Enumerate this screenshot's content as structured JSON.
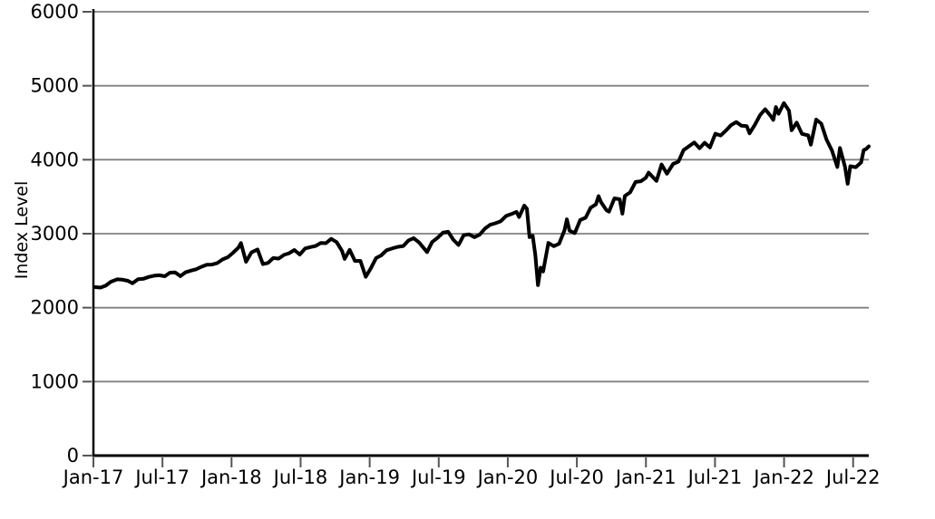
{
  "chart_data": {
    "type": "line",
    "title": "",
    "xlabel": "",
    "ylabel": "Index Level",
    "ylim": [
      0,
      6000
    ],
    "y_ticks": [
      0,
      1000,
      2000,
      3000,
      4000,
      5000,
      6000
    ],
    "x_tick_labels": [
      "Jan-17",
      "Jul-17",
      "Jan-18",
      "Jul-18",
      "Jan-19",
      "Jul-19",
      "Jan-20",
      "Jul-20",
      "Jan-21",
      "Jul-21",
      "Jan-22",
      "Jul-22"
    ],
    "x_tick_interval_months": 6,
    "x_domain": [
      "2017-01-01",
      "2022-08-12"
    ],
    "grid": "horizontal",
    "legend": "none",
    "colors": {
      "line": "#000000",
      "grid": "#808080",
      "axis": "#000000",
      "tick": "#555555",
      "text": "#000000",
      "background": "#ffffff"
    },
    "series": [
      {
        "name": "Index Level",
        "dates": [
          "2017-01-06",
          "2017-01-20",
          "2017-02-03",
          "2017-02-17",
          "2017-03-03",
          "2017-03-17",
          "2017-03-31",
          "2017-04-13",
          "2017-04-28",
          "2017-05-12",
          "2017-05-26",
          "2017-06-09",
          "2017-06-23",
          "2017-07-07",
          "2017-07-21",
          "2017-08-04",
          "2017-08-18",
          "2017-09-01",
          "2017-09-15",
          "2017-09-29",
          "2017-10-13",
          "2017-10-27",
          "2017-11-10",
          "2017-11-24",
          "2017-12-08",
          "2017-12-22",
          "2018-01-05",
          "2018-01-19",
          "2018-01-26",
          "2018-02-09",
          "2018-02-23",
          "2018-03-09",
          "2018-03-23",
          "2018-04-06",
          "2018-04-20",
          "2018-05-04",
          "2018-05-18",
          "2018-06-01",
          "2018-06-15",
          "2018-06-29",
          "2018-07-13",
          "2018-07-27",
          "2018-08-10",
          "2018-08-24",
          "2018-09-07",
          "2018-09-21",
          "2018-10-05",
          "2018-10-19",
          "2018-10-26",
          "2018-11-09",
          "2018-11-23",
          "2018-12-07",
          "2018-12-21",
          "2019-01-04",
          "2019-01-18",
          "2019-02-01",
          "2019-02-15",
          "2019-03-01",
          "2019-03-15",
          "2019-03-29",
          "2019-04-12",
          "2019-04-26",
          "2019-05-10",
          "2019-05-31",
          "2019-06-14",
          "2019-06-28",
          "2019-07-12",
          "2019-07-26",
          "2019-08-09",
          "2019-08-23",
          "2019-09-06",
          "2019-09-20",
          "2019-10-04",
          "2019-10-18",
          "2019-11-01",
          "2019-11-15",
          "2019-11-29",
          "2019-12-13",
          "2019-12-27",
          "2020-01-10",
          "2020-01-24",
          "2020-01-31",
          "2020-02-14",
          "2020-02-21",
          "2020-02-28",
          "2020-03-06",
          "2020-03-13",
          "2020-03-20",
          "2020-03-27",
          "2020-04-03",
          "2020-04-17",
          "2020-05-01",
          "2020-05-15",
          "2020-05-29",
          "2020-06-05",
          "2020-06-12",
          "2020-06-26",
          "2020-07-10",
          "2020-07-24",
          "2020-08-07",
          "2020-08-21",
          "2020-08-28",
          "2020-09-04",
          "2020-09-18",
          "2020-09-25",
          "2020-10-09",
          "2020-10-23",
          "2020-10-30",
          "2020-11-06",
          "2020-11-20",
          "2020-12-04",
          "2020-12-18",
          "2020-12-31",
          "2021-01-08",
          "2021-01-29",
          "2021-02-12",
          "2021-02-26",
          "2021-03-12",
          "2021-03-26",
          "2021-04-09",
          "2021-04-23",
          "2021-05-07",
          "2021-05-21",
          "2021-06-04",
          "2021-06-18",
          "2021-07-02",
          "2021-07-16",
          "2021-07-30",
          "2021-08-13",
          "2021-08-27",
          "2021-09-10",
          "2021-09-24",
          "2021-10-01",
          "2021-10-15",
          "2021-10-29",
          "2021-11-12",
          "2021-11-26",
          "2021-12-03",
          "2021-12-10",
          "2021-12-17",
          "2021-12-31",
          "2022-01-14",
          "2022-01-21",
          "2022-02-04",
          "2022-02-18",
          "2022-03-04",
          "2022-03-11",
          "2022-03-25",
          "2022-04-08",
          "2022-04-22",
          "2022-05-06",
          "2022-05-20",
          "2022-05-27",
          "2022-06-10",
          "2022-06-17",
          "2022-06-24",
          "2022-07-08",
          "2022-07-22",
          "2022-07-29",
          "2022-08-05",
          "2022-08-12"
        ],
        "values": [
          2277,
          2271,
          2297,
          2351,
          2383,
          2378,
          2363,
          2329,
          2384,
          2391,
          2416,
          2432,
          2438,
          2425,
          2473,
          2477,
          2426,
          2477,
          2500,
          2519,
          2553,
          2581,
          2582,
          2602,
          2652,
          2683,
          2743,
          2810,
          2873,
          2620,
          2747,
          2787,
          2588,
          2604,
          2670,
          2663,
          2713,
          2735,
          2780,
          2718,
          2801,
          2819,
          2833,
          2875,
          2872,
          2930,
          2886,
          2768,
          2659,
          2781,
          2632,
          2633,
          2417,
          2532,
          2671,
          2706,
          2776,
          2803,
          2822,
          2834,
          2907,
          2940,
          2881,
          2752,
          2887,
          2942,
          3014,
          3026,
          2919,
          2847,
          2979,
          2992,
          2952,
          2986,
          3067,
          3120,
          3141,
          3169,
          3240,
          3265,
          3295,
          3225,
          3380,
          3338,
          2954,
          2972,
          2711,
          2305,
          2541,
          2489,
          2875,
          2831,
          2864,
          3044,
          3194,
          3041,
          3009,
          3185,
          3216,
          3351,
          3397,
          3508,
          3427,
          3319,
          3298,
          3477,
          3465,
          3270,
          3509,
          3558,
          3699,
          3709,
          3756,
          3825,
          3714,
          3935,
          3811,
          3943,
          3975,
          4129,
          4180,
          4233,
          4156,
          4230,
          4166,
          4352,
          4327,
          4395,
          4468,
          4509,
          4459,
          4455,
          4357,
          4471,
          4605,
          4683,
          4594,
          4538,
          4712,
          4621,
          4766,
          4663,
          4398,
          4501,
          4349,
          4329,
          4204,
          4543,
          4488,
          4272,
          4123,
          3901,
          4158,
          3901,
          3675,
          3912,
          3899,
          3962,
          4130,
          4145,
          4180
        ]
      }
    ]
  }
}
